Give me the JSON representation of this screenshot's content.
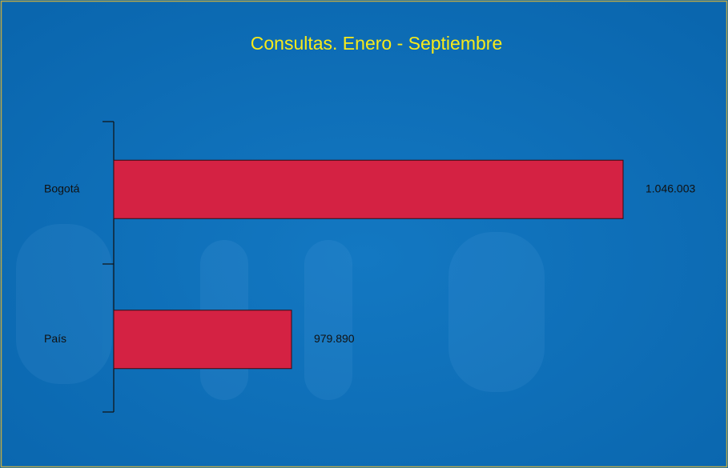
{
  "chart_data": {
    "type": "barh",
    "title": "Consultas. Enero - Septiembre",
    "categories": [
      "Bogotá",
      "País"
    ],
    "values": [
      1046003,
      979890
    ],
    "value_labels": [
      "1.046.003",
      "979.890"
    ],
    "color": "#d42243",
    "xlim": [
      944440,
      1057500
    ]
  }
}
